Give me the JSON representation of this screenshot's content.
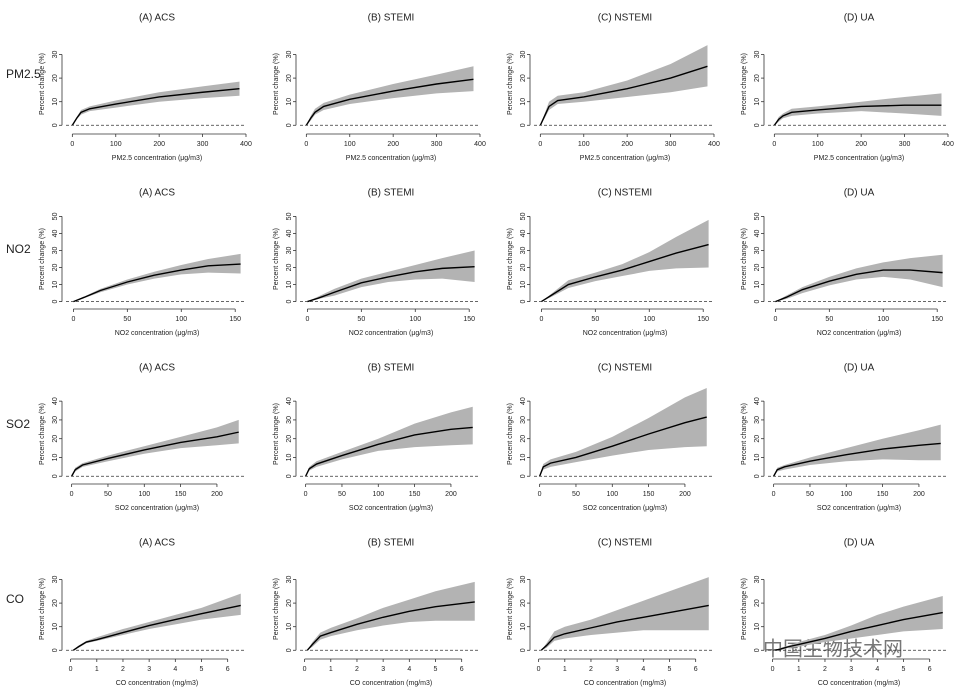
{
  "row_labels": [
    "PM2.5",
    "NO2",
    "SO2",
    "CO"
  ],
  "watermark": "中国生物技术网",
  "chart_data": [
    {
      "type": "line",
      "title": "(A) ACS",
      "xlabel": "PM2.5 concentration (μg/m3)",
      "ylabel": "Percent change (%)",
      "x": [
        0,
        10,
        20,
        40,
        100,
        200,
        300,
        385
      ],
      "xlim": [
        -10,
        400
      ],
      "xticks": [
        0,
        100,
        200,
        300,
        400
      ],
      "ylim": [
        -2,
        37
      ],
      "yticks": [
        0,
        10,
        20,
        30
      ],
      "reference_line": 0,
      "series": [
        {
          "color": "#000000",
          "band_color": "#b3b3b3",
          "values": [
            0,
            3,
            5.5,
            7,
            9,
            12,
            14,
            15.5
          ],
          "lower": [
            0,
            2.5,
            4.5,
            6,
            7.5,
            10,
            11.5,
            12.5
          ],
          "upper": [
            0,
            3.5,
            6.5,
            8,
            10.5,
            14,
            16.5,
            18.5
          ]
        }
      ]
    },
    {
      "type": "line",
      "title": "(B) STEMI",
      "xlabel": "PM2.5 concentration (μg/m3)",
      "ylabel": "Percent change (%)",
      "x": [
        0,
        10,
        20,
        40,
        100,
        200,
        300,
        385
      ],
      "xlim": [
        -10,
        400
      ],
      "xticks": [
        0,
        100,
        200,
        300,
        400
      ],
      "ylim": [
        -2,
        37
      ],
      "yticks": [
        0,
        10,
        20,
        30
      ],
      "reference_line": 0,
      "series": [
        {
          "color": "#000000",
          "band_color": "#b3b3b3",
          "values": [
            0,
            3,
            5.5,
            8,
            11,
            14.5,
            17.5,
            19.5
          ],
          "lower": [
            0,
            2,
            4.5,
            6.5,
            9,
            11.5,
            13.5,
            14.5
          ],
          "upper": [
            0,
            4,
            7,
            9.5,
            13,
            17.5,
            21.5,
            25
          ]
        }
      ]
    },
    {
      "type": "line",
      "title": "(C) NSTEMI",
      "xlabel": "PM2.5 concentration (μg/m3)",
      "ylabel": "Percent change (%)",
      "x": [
        0,
        10,
        20,
        40,
        100,
        200,
        300,
        385
      ],
      "xlim": [
        -10,
        400
      ],
      "xticks": [
        0,
        100,
        200,
        300,
        400
      ],
      "ylim": [
        -2,
        37
      ],
      "yticks": [
        0,
        10,
        20,
        30
      ],
      "reference_line": 0,
      "series": [
        {
          "color": "#000000",
          "band_color": "#b3b3b3",
          "values": [
            0,
            4,
            8,
            10.5,
            12,
            15.5,
            20,
            25
          ],
          "lower": [
            0,
            3,
            6.5,
            9,
            10,
            12,
            14,
            16.5
          ],
          "upper": [
            0,
            5,
            10,
            12.5,
            14,
            19,
            26,
            34
          ]
        }
      ]
    },
    {
      "type": "line",
      "title": "(D) UA",
      "xlabel": "PM2.5 concentration (μg/m3)",
      "ylabel": "Percent change (%)",
      "x": [
        0,
        10,
        20,
        40,
        100,
        200,
        300,
        385
      ],
      "xlim": [
        -10,
        400
      ],
      "xticks": [
        0,
        100,
        200,
        300,
        400
      ],
      "ylim": [
        -2,
        37
      ],
      "yticks": [
        0,
        10,
        20,
        30
      ],
      "reference_line": 0,
      "series": [
        {
          "color": "#000000",
          "band_color": "#b3b3b3",
          "values": [
            0,
            2.5,
            4,
            5.5,
            6.5,
            8,
            8.5,
            8.5
          ],
          "lower": [
            0,
            1.5,
            3,
            4,
            5,
            6,
            5,
            4
          ],
          "upper": [
            0,
            3.5,
            5,
            7,
            8,
            10,
            12,
            13.5
          ]
        }
      ]
    },
    {
      "type": "line",
      "title": "(A) ACS",
      "xlabel": "NO2 concentration (μg/m3)",
      "ylabel": "Percent change (%)",
      "x": [
        0,
        10,
        25,
        50,
        75,
        100,
        125,
        155
      ],
      "xlim": [
        -5,
        160
      ],
      "xticks": [
        0,
        50,
        100,
        150
      ],
      "ylim": [
        -2,
        52
      ],
      "yticks": [
        0,
        10,
        20,
        30,
        40,
        50
      ],
      "reference_line": 0,
      "series": [
        {
          "color": "#000000",
          "band_color": "#b3b3b3",
          "values": [
            0,
            2.5,
            6.5,
            11.5,
            15.5,
            18.5,
            21,
            22
          ],
          "lower": [
            0,
            2,
            5.5,
            10,
            13.5,
            16,
            17,
            16.5
          ],
          "upper": [
            0,
            3,
            7.5,
            13,
            17.5,
            21.5,
            25,
            28
          ]
        }
      ]
    },
    {
      "type": "line",
      "title": "(B) STEMI",
      "xlabel": "NO2 concentration (μg/m3)",
      "ylabel": "Percent change (%)",
      "x": [
        0,
        10,
        25,
        50,
        75,
        100,
        125,
        155
      ],
      "xlim": [
        -5,
        160
      ],
      "xticks": [
        0,
        50,
        100,
        150
      ],
      "ylim": [
        -2,
        52
      ],
      "yticks": [
        0,
        10,
        20,
        30,
        40,
        50
      ],
      "reference_line": 0,
      "series": [
        {
          "color": "#000000",
          "band_color": "#b3b3b3",
          "values": [
            0,
            2,
            5.5,
            11,
            14.5,
            17.5,
            19.5,
            20.5
          ],
          "lower": [
            0,
            1.5,
            3.5,
            8.5,
            11.5,
            13,
            13.5,
            11.5
          ],
          "upper": [
            0,
            3,
            7.5,
            13.5,
            17.5,
            21.5,
            25.5,
            30
          ]
        }
      ]
    },
    {
      "type": "line",
      "title": "(C) NSTEMI",
      "xlabel": "NO2 concentration (μg/m3)",
      "ylabel": "Percent change (%)",
      "x": [
        0,
        10,
        25,
        50,
        75,
        100,
        125,
        155
      ],
      "xlim": [
        -5,
        160
      ],
      "xticks": [
        0,
        50,
        100,
        150
      ],
      "ylim": [
        -2,
        52
      ],
      "yticks": [
        0,
        10,
        20,
        30,
        40,
        50
      ],
      "reference_line": 0,
      "series": [
        {
          "color": "#000000",
          "band_color": "#b3b3b3",
          "values": [
            0,
            4,
            10,
            14.5,
            18.5,
            23.5,
            28.5,
            33.5
          ],
          "lower": [
            0,
            3,
            8,
            12,
            15,
            18,
            19.5,
            20
          ],
          "upper": [
            0,
            5,
            12.5,
            17,
            22,
            29,
            38,
            48
          ]
        }
      ]
    },
    {
      "type": "line",
      "title": "(D) UA",
      "xlabel": "NO2 concentration (μg/m3)",
      "ylabel": "Percent change (%)",
      "x": [
        0,
        10,
        25,
        50,
        75,
        100,
        125,
        155
      ],
      "xlim": [
        -5,
        160
      ],
      "xticks": [
        0,
        50,
        100,
        150
      ],
      "ylim": [
        -2,
        52
      ],
      "yticks": [
        0,
        10,
        20,
        30,
        40,
        50
      ],
      "reference_line": 0,
      "series": [
        {
          "color": "#000000",
          "band_color": "#b3b3b3",
          "values": [
            0,
            2.5,
            7,
            12,
            16,
            18.5,
            18.5,
            17
          ],
          "lower": [
            0,
            1.5,
            5,
            9.5,
            13,
            14.5,
            13,
            8.5
          ],
          "upper": [
            0,
            3.5,
            8.5,
            14.5,
            19.5,
            23,
            25.5,
            27.5
          ]
        }
      ]
    },
    {
      "type": "line",
      "title": "(A) ACS",
      "xlabel": "SO2 concentration (μg/m3)",
      "ylabel": "Percent change (%)",
      "x": [
        0,
        5,
        15,
        50,
        100,
        150,
        200,
        230
      ],
      "xlim": [
        -5,
        240
      ],
      "xticks": [
        0,
        50,
        100,
        150,
        200
      ],
      "ylim": [
        -2,
        47
      ],
      "yticks": [
        0,
        10,
        20,
        30,
        40
      ],
      "reference_line": 0,
      "series": [
        {
          "color": "#000000",
          "band_color": "#b3b3b3",
          "values": [
            0,
            3.5,
            6,
            9.5,
            14,
            18,
            21,
            23.5
          ],
          "lower": [
            0,
            2.5,
            5,
            8,
            12,
            15,
            16.5,
            17.5
          ],
          "upper": [
            0,
            4.5,
            7,
            11,
            16,
            21,
            26,
            30
          ]
        }
      ]
    },
    {
      "type": "line",
      "title": "(B) STEMI",
      "xlabel": "SO2 concentration (μg/m3)",
      "ylabel": "Percent change (%)",
      "x": [
        0,
        5,
        15,
        50,
        100,
        150,
        200,
        230
      ],
      "xlim": [
        -5,
        240
      ],
      "xticks": [
        0,
        50,
        100,
        150,
        200
      ],
      "ylim": [
        -2,
        47
      ],
      "yticks": [
        0,
        10,
        20,
        30,
        40
      ],
      "reference_line": 0,
      "series": [
        {
          "color": "#000000",
          "band_color": "#b3b3b3",
          "values": [
            0,
            4,
            6.5,
            11,
            17,
            22,
            25,
            26
          ],
          "lower": [
            0,
            3,
            5,
            9,
            13.5,
            15.5,
            16.5,
            17
          ],
          "upper": [
            0,
            5,
            8,
            13,
            20,
            28,
            34,
            37
          ]
        }
      ]
    },
    {
      "type": "line",
      "title": "(C) NSTEMI",
      "xlabel": "SO2 concentration (μg/m3)",
      "ylabel": "Percent change (%)",
      "x": [
        0,
        5,
        15,
        50,
        100,
        150,
        200,
        230
      ],
      "xlim": [
        -5,
        240
      ],
      "xticks": [
        0,
        50,
        100,
        150,
        200
      ],
      "ylim": [
        -2,
        47
      ],
      "yticks": [
        0,
        10,
        20,
        30,
        40
      ],
      "reference_line": 0,
      "series": [
        {
          "color": "#000000",
          "band_color": "#b3b3b3",
          "values": [
            0,
            5,
            7,
            10,
            16,
            22.5,
            28.5,
            31.5
          ],
          "lower": [
            0,
            3.5,
            5,
            7.5,
            11,
            14,
            15.5,
            16
          ],
          "upper": [
            0,
            6.5,
            9,
            13,
            21,
            31,
            42,
            47
          ]
        }
      ]
    },
    {
      "type": "line",
      "title": "(D) UA",
      "xlabel": "SO2 concentration (μg/m3)",
      "ylabel": "Percent change (%)",
      "x": [
        0,
        5,
        15,
        50,
        100,
        150,
        200,
        230
      ],
      "xlim": [
        -5,
        240
      ],
      "xticks": [
        0,
        50,
        100,
        150,
        200
      ],
      "ylim": [
        -2,
        47
      ],
      "yticks": [
        0,
        10,
        20,
        30,
        40
      ],
      "reference_line": 0,
      "series": [
        {
          "color": "#000000",
          "band_color": "#b3b3b3",
          "values": [
            0,
            3.5,
            5,
            8,
            11.5,
            14.5,
            16.5,
            17.5
          ],
          "lower": [
            0,
            2.5,
            3.5,
            6,
            8,
            9,
            8.5,
            8.5
          ],
          "upper": [
            0,
            4.5,
            6,
            10,
            15,
            20,
            24.5,
            27.5
          ]
        }
      ]
    },
    {
      "type": "line",
      "title": "(A) ACS",
      "xlabel": "CO concentration (mg/m3)",
      "ylabel": "Percent change (%)",
      "x": [
        0.1,
        0.3,
        0.6,
        1,
        2,
        3,
        4,
        5,
        6.5
      ],
      "xlim": [
        -0.1,
        6.7
      ],
      "xticks": [
        0,
        1,
        2,
        3,
        4,
        5,
        6
      ],
      "ylim": [
        -2,
        37
      ],
      "yticks": [
        0,
        10,
        20,
        30
      ],
      "reference_line": 0,
      "series": [
        {
          "color": "#000000",
          "band_color": "#b3b3b3",
          "values": [
            0,
            1.5,
            3.5,
            4.5,
            7.5,
            10.5,
            13,
            15.5,
            19
          ],
          "lower": [
            0,
            1,
            3,
            4,
            6.5,
            9,
            11,
            13,
            15
          ],
          "upper": [
            0,
            2,
            4,
            5.5,
            9,
            12,
            15,
            18,
            24
          ]
        }
      ]
    },
    {
      "type": "line",
      "title": "(B) STEMI",
      "xlabel": "CO concentration (mg/m3)",
      "ylabel": "Percent change (%)",
      "x": [
        0.1,
        0.3,
        0.6,
        1,
        2,
        3,
        4,
        5,
        6.5
      ],
      "xlim": [
        -0.1,
        6.7
      ],
      "xticks": [
        0,
        1,
        2,
        3,
        4,
        5,
        6
      ],
      "ylim": [
        -2,
        37
      ],
      "yticks": [
        0,
        10,
        20,
        30
      ],
      "reference_line": 0,
      "series": [
        {
          "color": "#000000",
          "band_color": "#b3b3b3",
          "values": [
            0,
            2.5,
            6,
            7.5,
            11,
            14,
            16.5,
            18.5,
            20.5
          ],
          "lower": [
            0,
            1.5,
            4.5,
            6,
            8.5,
            10.5,
            12,
            12.5,
            12.5
          ],
          "upper": [
            0,
            3.5,
            7.5,
            9.5,
            13.5,
            18,
            21.5,
            25,
            29
          ]
        }
      ]
    },
    {
      "type": "line",
      "title": "(C) NSTEMI",
      "xlabel": "CO concentration (mg/m3)",
      "ylabel": "Percent change (%)",
      "x": [
        0.1,
        0.3,
        0.6,
        1,
        2,
        3,
        4,
        5,
        6.5
      ],
      "xlim": [
        -0.1,
        6.7
      ],
      "xticks": [
        0,
        1,
        2,
        3,
        4,
        5,
        6
      ],
      "ylim": [
        -2,
        37
      ],
      "yticks": [
        0,
        10,
        20,
        30
      ],
      "reference_line": 0,
      "series": [
        {
          "color": "#000000",
          "band_color": "#b3b3b3",
          "values": [
            0,
            2,
            5.5,
            7,
            9.5,
            12,
            14,
            16,
            19
          ],
          "lower": [
            0,
            1,
            4,
            5,
            6.5,
            7.5,
            8.5,
            8.5,
            8.5
          ],
          "upper": [
            0,
            3,
            8,
            10,
            13,
            17,
            21,
            25,
            31
          ]
        }
      ]
    },
    {
      "type": "line",
      "title": "(D) UA",
      "xlabel": "CO concentration (mg/m3)",
      "ylabel": "Percent change (%)",
      "x": [
        0.1,
        0.3,
        0.6,
        1,
        2,
        3,
        4,
        5,
        6.5
      ],
      "xlim": [
        -0.1,
        6.7
      ],
      "xticks": [
        0,
        1,
        2,
        3,
        4,
        5,
        6
      ],
      "ylim": [
        -2,
        37
      ],
      "yticks": [
        0,
        10,
        20,
        30
      ],
      "reference_line": 0,
      "series": [
        {
          "color": "#000000",
          "band_color": "#b3b3b3",
          "values": [
            0,
            0.5,
            1.5,
            2.5,
            5,
            8,
            10.5,
            13,
            16
          ],
          "lower": [
            0,
            0,
            1,
            1.5,
            3.5,
            5,
            6.5,
            8,
            9
          ],
          "upper": [
            0,
            1,
            2,
            3.5,
            6.5,
            10.5,
            15,
            18.5,
            23
          ]
        }
      ]
    }
  ]
}
